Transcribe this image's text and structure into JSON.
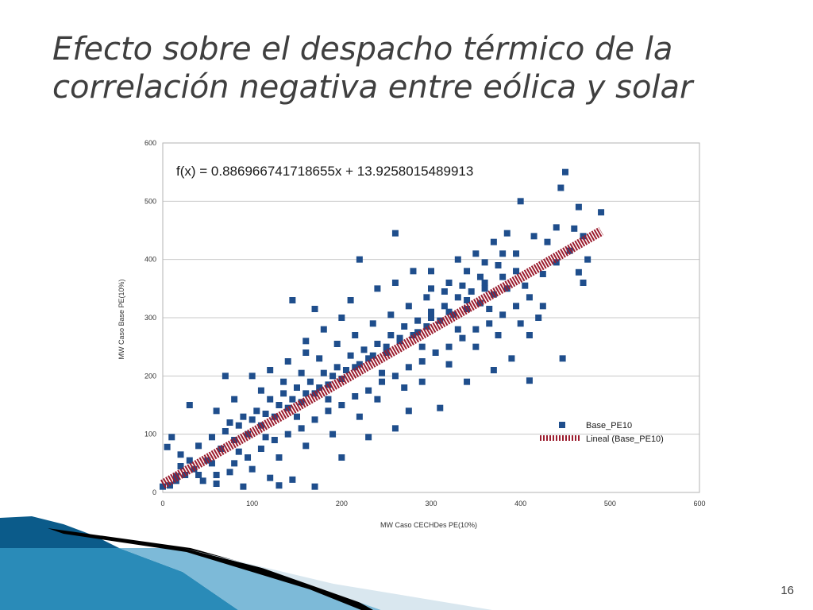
{
  "slide": {
    "title": "Efecto sobre el despacho térmico de la correlación negativa entre eólica y solar",
    "number": "16"
  },
  "chart_data": {
    "type": "scatter",
    "xlabel": "MW Caso CECHDes PE(10%)",
    "ylabel": "MW Caso Base PE(10%)",
    "xlim": [
      0,
      600
    ],
    "ylim": [
      0,
      600
    ],
    "xticks": [
      0,
      100,
      200,
      300,
      400,
      500,
      600
    ],
    "yticks": [
      0,
      100,
      200,
      300,
      400,
      500,
      600
    ],
    "grid": "horizontal",
    "legend_position": "bottom-right",
    "equation": "f(x) = 0.886966741718655x + 13.9258015489913",
    "series": [
      {
        "name": "Base_PE10",
        "color": "#1f4e8c",
        "marker": "square",
        "points": [
          [
            450,
            550
          ],
          [
            445,
            523
          ],
          [
            465,
            490
          ],
          [
            490,
            481
          ],
          [
            400,
            500
          ],
          [
            440,
            455
          ],
          [
            460,
            453
          ],
          [
            430,
            430
          ],
          [
            470,
            440
          ],
          [
            475,
            400
          ],
          [
            465,
            378
          ],
          [
            470,
            360
          ],
          [
            447,
            230
          ],
          [
            410,
            192
          ],
          [
            260,
            445
          ],
          [
            220,
            400
          ],
          [
            145,
            330
          ],
          [
            170,
            315
          ],
          [
            160,
            240
          ],
          [
            70,
            200
          ],
          [
            30,
            150
          ],
          [
            10,
            95
          ],
          [
            5,
            78
          ],
          [
            20,
            65
          ],
          [
            0,
            10
          ],
          [
            15,
            28
          ],
          [
            40,
            30
          ],
          [
            55,
            50
          ],
          [
            90,
            10
          ],
          [
            120,
            25
          ],
          [
            130,
            12
          ],
          [
            145,
            22
          ],
          [
            170,
            10
          ],
          [
            200,
            60
          ],
          [
            230,
            95
          ],
          [
            260,
            110
          ],
          [
            275,
            140
          ],
          [
            310,
            145
          ],
          [
            340,
            190
          ],
          [
            370,
            210
          ],
          [
            390,
            230
          ],
          [
            410,
            270
          ],
          [
            420,
            300
          ],
          [
            300,
            380
          ],
          [
            330,
            400
          ],
          [
            350,
            410
          ],
          [
            370,
            430
          ],
          [
            385,
            445
          ],
          [
            415,
            440
          ],
          [
            395,
            410
          ],
          [
            380,
            370
          ],
          [
            360,
            350
          ],
          [
            340,
            330
          ],
          [
            320,
            310
          ],
          [
            300,
            300
          ],
          [
            285,
            275
          ],
          [
            265,
            260
          ],
          [
            250,
            240
          ],
          [
            230,
            230
          ],
          [
            215,
            215
          ],
          [
            200,
            195
          ],
          [
            185,
            185
          ],
          [
            170,
            170
          ],
          [
            155,
            155
          ],
          [
            140,
            145
          ],
          [
            125,
            130
          ],
          [
            110,
            115
          ],
          [
            95,
            100
          ],
          [
            80,
            90
          ],
          [
            65,
            75
          ],
          [
            50,
            55
          ],
          [
            35,
            40
          ],
          [
            25,
            30
          ],
          [
            15,
            20
          ],
          [
            8,
            12
          ],
          [
            100,
            200
          ],
          [
            120,
            210
          ],
          [
            140,
            225
          ],
          [
            160,
            260
          ],
          [
            180,
            280
          ],
          [
            200,
            300
          ],
          [
            210,
            330
          ],
          [
            240,
            350
          ],
          [
            260,
            360
          ],
          [
            280,
            380
          ],
          [
            300,
            350
          ],
          [
            320,
            360
          ],
          [
            340,
            380
          ],
          [
            360,
            395
          ],
          [
            380,
            410
          ],
          [
            100,
            40
          ],
          [
            130,
            60
          ],
          [
            160,
            80
          ],
          [
            190,
            100
          ],
          [
            220,
            130
          ],
          [
            240,
            160
          ],
          [
            270,
            180
          ],
          [
            290,
            190
          ],
          [
            320,
            220
          ],
          [
            350,
            250
          ],
          [
            375,
            270
          ],
          [
            400,
            290
          ],
          [
            425,
            320
          ],
          [
            60,
            140
          ],
          [
            80,
            160
          ],
          [
            110,
            175
          ],
          [
            135,
            190
          ],
          [
            155,
            205
          ],
          [
            175,
            230
          ],
          [
            195,
            255
          ],
          [
            215,
            270
          ],
          [
            235,
            290
          ],
          [
            255,
            305
          ],
          [
            275,
            320
          ],
          [
            295,
            335
          ],
          [
            315,
            345
          ],
          [
            335,
            355
          ],
          [
            355,
            370
          ],
          [
            375,
            390
          ],
          [
            395,
            380
          ],
          [
            75,
            120
          ],
          [
            90,
            130
          ],
          [
            105,
            140
          ],
          [
            120,
            160
          ],
          [
            135,
            170
          ],
          [
            150,
            180
          ],
          [
            165,
            190
          ],
          [
            180,
            205
          ],
          [
            195,
            215
          ],
          [
            210,
            235
          ],
          [
            225,
            245
          ],
          [
            240,
            255
          ],
          [
            255,
            270
          ],
          [
            270,
            285
          ],
          [
            285,
            295
          ],
          [
            300,
            310
          ],
          [
            315,
            320
          ],
          [
            330,
            335
          ],
          [
            345,
            345
          ],
          [
            360,
            360
          ],
          [
            40,
            80
          ],
          [
            55,
            95
          ],
          [
            70,
            105
          ],
          [
            85,
            115
          ],
          [
            100,
            125
          ],
          [
            115,
            135
          ],
          [
            130,
            150
          ],
          [
            145,
            160
          ],
          [
            160,
            170
          ],
          [
            175,
            180
          ],
          [
            190,
            200
          ],
          [
            205,
            210
          ],
          [
            220,
            220
          ],
          [
            235,
            235
          ],
          [
            250,
            250
          ],
          [
            265,
            265
          ],
          [
            280,
            270
          ],
          [
            295,
            285
          ],
          [
            310,
            295
          ],
          [
            325,
            305
          ],
          [
            340,
            315
          ],
          [
            355,
            325
          ],
          [
            370,
            340
          ],
          [
            385,
            350
          ],
          [
            60,
            30
          ],
          [
            80,
            50
          ],
          [
            95,
            60
          ],
          [
            110,
            75
          ],
          [
            125,
            90
          ],
          [
            140,
            100
          ],
          [
            155,
            110
          ],
          [
            170,
            125
          ],
          [
            185,
            140
          ],
          [
            200,
            150
          ],
          [
            215,
            165
          ],
          [
            230,
            175
          ],
          [
            245,
            190
          ],
          [
            260,
            200
          ],
          [
            275,
            215
          ],
          [
            290,
            225
          ],
          [
            305,
            240
          ],
          [
            320,
            250
          ],
          [
            335,
            265
          ],
          [
            350,
            280
          ],
          [
            365,
            290
          ],
          [
            380,
            305
          ],
          [
            395,
            320
          ],
          [
            410,
            335
          ],
          [
            20,
            45
          ],
          [
            30,
            55
          ],
          [
            45,
            20
          ],
          [
            60,
            15
          ],
          [
            75,
            35
          ],
          [
            85,
            70
          ],
          [
            115,
            95
          ],
          [
            150,
            130
          ],
          [
            185,
            160
          ],
          [
            245,
            205
          ],
          [
            290,
            250
          ],
          [
            330,
            280
          ],
          [
            365,
            315
          ],
          [
            405,
            355
          ],
          [
            425,
            375
          ],
          [
            440,
            395
          ],
          [
            455,
            415
          ]
        ]
      },
      {
        "name": "Lineal (Base_PE10)",
        "color": "#9b1c2e",
        "type": "trendline",
        "slope": 0.886966741718655,
        "intercept": 13.9258015489913,
        "x_range": [
          0,
          490
        ]
      }
    ]
  },
  "decoration": {
    "band_colors": [
      "#0b5b8a",
      "#2a8bb8",
      "#7dbad8",
      "#000000",
      "#d9e7ef"
    ]
  }
}
